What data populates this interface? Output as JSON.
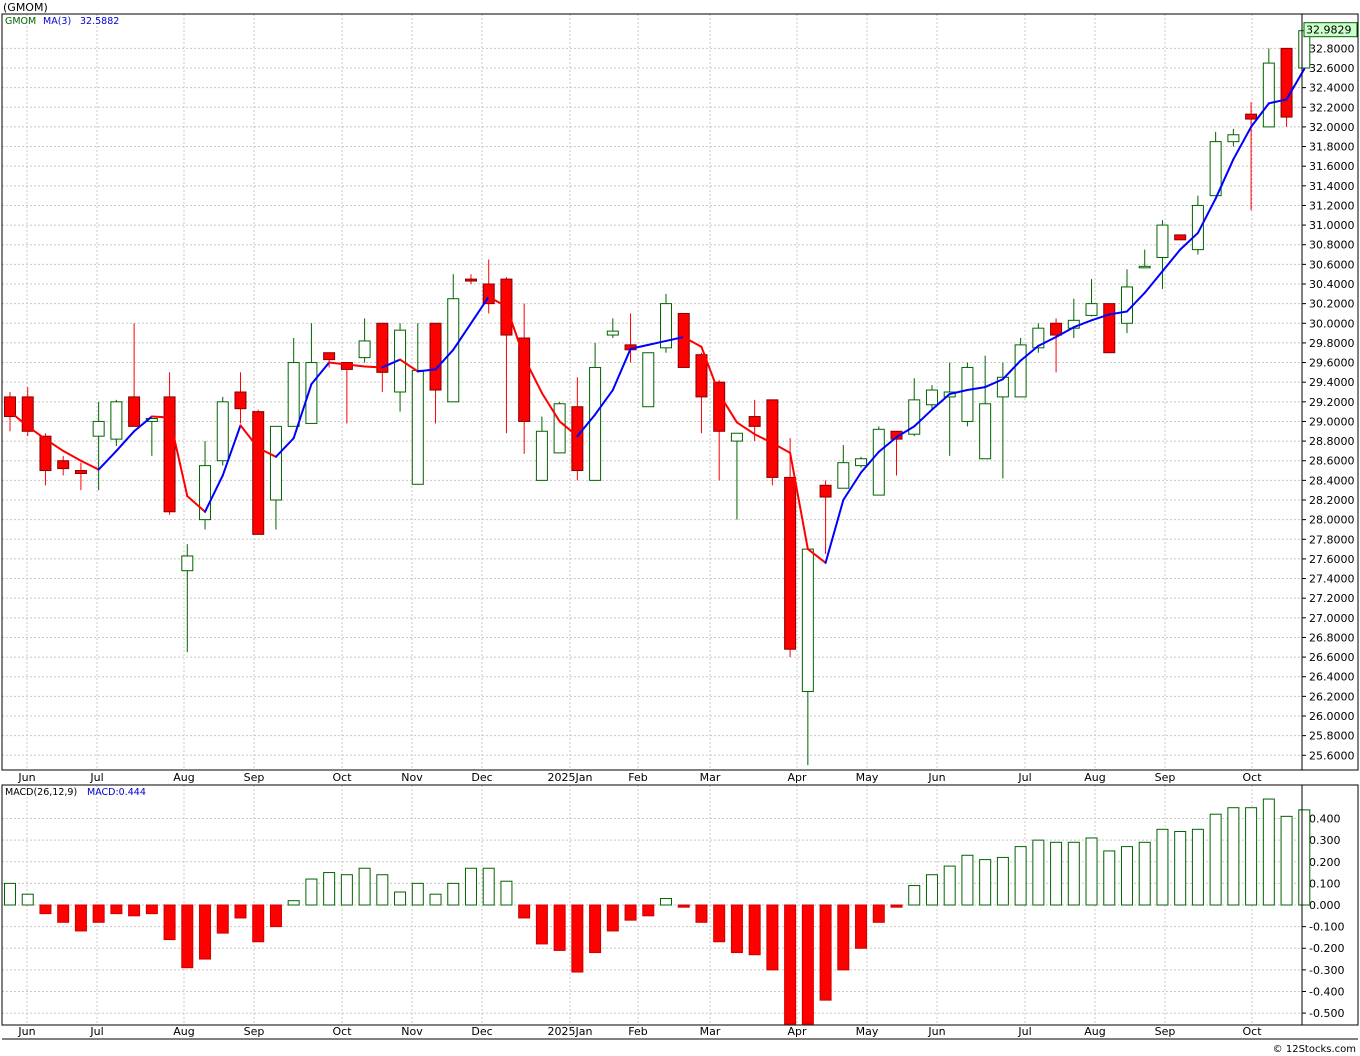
{
  "title": "(GMOM)",
  "credit": "© 12Stocks.com",
  "colors": {
    "up": "#006400",
    "down": "#ff0000",
    "ma_up": "#0000ff",
    "ma_down": "#ff0000",
    "grid": "#c8c8c8"
  },
  "price_panel": {
    "legend_symbol": "GMOM",
    "legend_ma": "MA(3)",
    "legend_ma_value": "32.5882",
    "last_price": "32.9829",
    "y_ticks": [
      "25.6000",
      "25.8000",
      "26.0000",
      "26.2000",
      "26.4000",
      "26.6000",
      "26.8000",
      "27.0000",
      "27.2000",
      "27.4000",
      "27.6000",
      "27.8000",
      "28.0000",
      "28.2000",
      "28.4000",
      "28.6000",
      "28.8000",
      "29.0000",
      "29.2000",
      "29.4000",
      "29.6000",
      "29.8000",
      "30.0000",
      "30.2000",
      "30.4000",
      "30.6000",
      "30.8000",
      "31.0000",
      "31.2000",
      "31.4000",
      "31.6000",
      "31.8000",
      "32.0000",
      "32.2000",
      "32.4000",
      "32.6000",
      "32.8000"
    ]
  },
  "macd_panel": {
    "legend": "MACD(26,12,9)",
    "legend_value": "MACD:0.444",
    "y_ticks": [
      "0.400",
      "0.300",
      "0.200",
      "0.100",
      "0.000",
      "-0.100",
      "-0.200",
      "-0.300",
      "-0.400",
      "-0.500"
    ]
  },
  "month_labels": [
    "Jun",
    "Jul",
    "Aug",
    "Sep",
    "Oct",
    "Nov",
    "Dec",
    "2025Jan",
    "Feb",
    "Mar",
    "Apr",
    "May",
    "Jun",
    "Jul",
    "Aug",
    "Sep",
    "Oct"
  ],
  "chart_data": [
    {
      "type": "candlestick",
      "title": "(GMOM)",
      "ylim": [
        25.45,
        33.15
      ],
      "series": [
        {
          "name": "GMOM",
          "ohlc": [
            [
              29.25,
              29.3,
              28.9,
              29.05
            ],
            [
              29.25,
              29.35,
              28.85,
              28.9
            ],
            [
              28.85,
              28.88,
              28.35,
              28.5
            ],
            [
              28.6,
              28.65,
              28.45,
              28.52
            ],
            [
              28.5,
              28.58,
              28.3,
              28.47
            ],
            [
              28.85,
              29.2,
              28.3,
              29.0
            ],
            [
              28.82,
              29.22,
              28.75,
              29.2
            ],
            [
              29.25,
              30.0,
              28.95,
              28.95
            ],
            [
              29.0,
              29.03,
              28.65,
              29.03
            ],
            [
              29.25,
              29.5,
              28.05,
              28.08
            ],
            [
              27.48,
              27.75,
              26.65,
              27.63
            ],
            [
              28.0,
              28.8,
              27.9,
              28.55
            ],
            [
              28.6,
              29.25,
              28.55,
              29.2
            ],
            [
              29.3,
              29.5,
              28.98,
              29.13
            ],
            [
              29.1,
              29.12,
              27.85,
              27.85
            ],
            [
              28.2,
              28.95,
              27.9,
              28.95
            ],
            [
              28.95,
              29.85,
              28.95,
              29.6
            ],
            [
              28.98,
              30.0,
              28.98,
              29.6
            ],
            [
              29.7,
              29.7,
              29.55,
              29.63
            ],
            [
              29.6,
              29.6,
              28.98,
              29.53
            ],
            [
              29.65,
              30.05,
              29.6,
              29.82
            ],
            [
              30.0,
              30.0,
              29.3,
              29.5
            ],
            [
              29.3,
              30.0,
              29.1,
              29.93
            ],
            [
              28.36,
              30.0,
              28.36,
              29.52
            ],
            [
              30.0,
              30.0,
              28.98,
              29.32
            ],
            [
              29.2,
              30.5,
              29.2,
              30.25
            ],
            [
              30.45,
              30.5,
              30.4,
              30.43
            ],
            [
              30.4,
              30.65,
              30.1,
              30.2
            ],
            [
              30.45,
              30.47,
              28.88,
              29.88
            ],
            [
              29.85,
              30.2,
              28.67,
              29.0
            ],
            [
              28.4,
              29.05,
              28.4,
              28.9
            ],
            [
              28.68,
              29.2,
              28.68,
              29.18
            ],
            [
              29.15,
              29.45,
              28.4,
              28.5
            ],
            [
              28.4,
              29.8,
              28.4,
              29.55
            ],
            [
              29.88,
              30.05,
              29.85,
              29.92
            ],
            [
              29.78,
              30.1,
              29.6,
              29.73
            ],
            [
              29.15,
              29.7,
              29.15,
              29.7
            ],
            [
              29.75,
              30.3,
              29.7,
              30.2
            ],
            [
              30.1,
              30.1,
              29.55,
              29.55
            ],
            [
              29.68,
              29.7,
              28.88,
              29.25
            ],
            [
              29.4,
              29.42,
              28.4,
              28.9
            ],
            [
              28.8,
              28.85,
              28.0,
              28.88
            ],
            [
              29.05,
              29.22,
              28.8,
              28.95
            ],
            [
              29.22,
              29.22,
              28.35,
              28.43
            ],
            [
              28.43,
              28.83,
              26.6,
              26.68
            ],
            [
              26.25,
              27.7,
              25.5,
              27.7
            ],
            [
              28.35,
              28.4,
              27.65,
              28.23
            ],
            [
              28.32,
              28.76,
              28.32,
              28.58
            ],
            [
              28.55,
              28.64,
              28.53,
              28.62
            ],
            [
              28.25,
              28.95,
              28.25,
              28.92
            ],
            [
              28.9,
              28.9,
              28.45,
              28.82
            ],
            [
              28.87,
              29.44,
              28.85,
              29.22
            ],
            [
              29.17,
              29.37,
              29.12,
              29.32
            ],
            [
              29.25,
              29.6,
              28.65,
              29.3
            ],
            [
              29.0,
              29.6,
              28.95,
              29.55
            ],
            [
              28.62,
              29.67,
              28.62,
              29.18
            ],
            [
              29.25,
              29.6,
              28.42,
              29.45
            ],
            [
              29.25,
              29.85,
              29.25,
              29.78
            ],
            [
              29.75,
              30.0,
              29.7,
              29.95
            ],
            [
              30.0,
              30.05,
              29.5,
              29.88
            ],
            [
              29.95,
              30.25,
              29.85,
              30.03
            ],
            [
              30.08,
              30.45,
              30.07,
              30.2
            ],
            [
              30.2,
              30.2,
              29.7,
              29.7
            ],
            [
              30.0,
              30.55,
              29.9,
              30.37
            ],
            [
              30.58,
              30.75,
              30.57,
              30.58
            ],
            [
              30.67,
              31.05,
              30.35,
              31.0
            ],
            [
              30.9,
              30.9,
              30.85,
              30.85
            ],
            [
              30.75,
              31.3,
              30.7,
              31.2
            ],
            [
              31.3,
              31.95,
              31.3,
              31.85
            ],
            [
              31.85,
              31.98,
              31.8,
              31.92
            ],
            [
              32.13,
              32.25,
              31.15,
              32.08
            ],
            [
              32.0,
              32.8,
              32.0,
              32.65
            ],
            [
              32.8,
              32.8,
              32.0,
              32.1
            ],
            [
              32.6,
              32.98,
              32.6,
              32.98
            ]
          ]
        },
        {
          "name": "MA(3)",
          "values": [
            29.1,
            28.95,
            28.82,
            28.7,
            28.6,
            28.51,
            28.7,
            28.9,
            29.05,
            29.04,
            28.24,
            28.08,
            28.45,
            28.96,
            28.73,
            28.64,
            28.83,
            29.38,
            29.6,
            29.58,
            29.56,
            29.55,
            29.63,
            29.51,
            29.53,
            29.73,
            30.0,
            30.27,
            30.17,
            29.65,
            29.29,
            29.0,
            28.85,
            29.07,
            29.32,
            29.74,
            29.78,
            29.82,
            29.86,
            29.76,
            29.28,
            28.99,
            28.87,
            28.78,
            28.68,
            27.7,
            27.56,
            28.2,
            28.48,
            28.69,
            28.84,
            28.95,
            29.12,
            29.28,
            29.32,
            29.35,
            29.43,
            29.62,
            29.77,
            29.86,
            29.96,
            30.03,
            30.09,
            30.12,
            30.31,
            30.53,
            30.75,
            30.92,
            31.27,
            31.67,
            32.0,
            32.24,
            32.28,
            32.59
          ]
        }
      ]
    },
    {
      "type": "bar",
      "title": "MACD(26,12,9)",
      "ylim": [
        -0.555,
        0.555
      ],
      "series": [
        {
          "name": "MACD",
          "values": [
            0.1,
            0.05,
            -0.04,
            -0.08,
            -0.12,
            -0.08,
            -0.04,
            -0.05,
            -0.04,
            -0.16,
            -0.29,
            -0.25,
            -0.13,
            -0.06,
            -0.17,
            -0.1,
            0.02,
            0.12,
            0.15,
            0.14,
            0.17,
            0.14,
            0.06,
            0.1,
            0.05,
            0.1,
            0.17,
            0.17,
            0.11,
            -0.06,
            -0.18,
            -0.21,
            -0.31,
            -0.22,
            -0.12,
            -0.07,
            -0.05,
            0.03,
            -0.01,
            -0.08,
            -0.17,
            -0.22,
            -0.23,
            -0.3,
            -0.55,
            -0.55,
            -0.44,
            -0.3,
            -0.2,
            -0.08,
            -0.01,
            0.09,
            0.14,
            0.18,
            0.23,
            0.21,
            0.22,
            0.27,
            0.3,
            0.29,
            0.29,
            0.31,
            0.25,
            0.27,
            0.29,
            0.35,
            0.34,
            0.35,
            0.42,
            0.45,
            0.45,
            0.49,
            0.41,
            0.44
          ]
        }
      ]
    }
  ]
}
